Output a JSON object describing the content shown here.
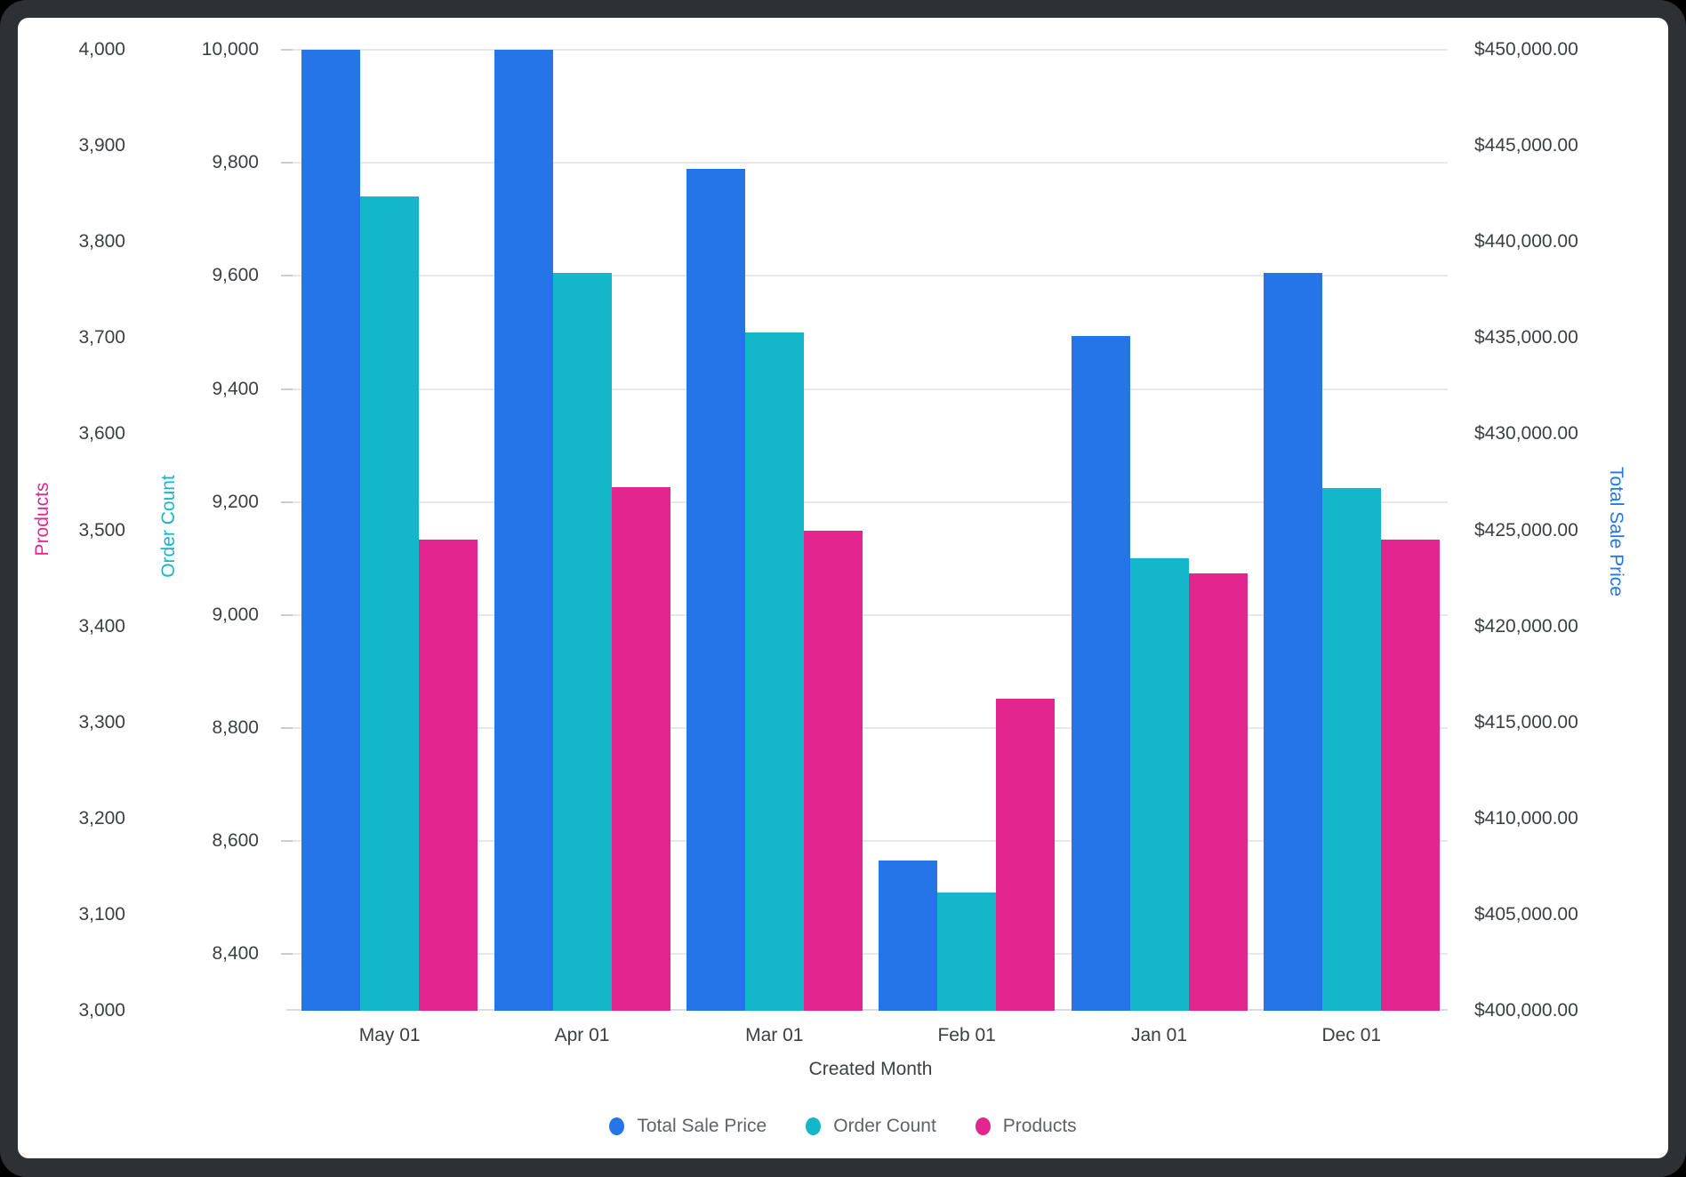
{
  "chart_data": {
    "type": "bar",
    "title": "",
    "xlabel": "Created Month",
    "categories": [
      "May 01",
      "Apr 01",
      "Mar 01",
      "Feb 01",
      "Jan 01",
      "Dec 01"
    ],
    "series": [
      {
        "name": "Total Sale Price",
        "axis": "price",
        "color": "#2375e8",
        "values": [
          450000,
          450000,
          443800,
          407800,
          435100,
          438400
        ]
      },
      {
        "name": "Order Count",
        "axis": "orders",
        "color": "#14b6ca",
        "values": [
          9740,
          9605,
          9500,
          8510,
          9100,
          9225
        ]
      },
      {
        "name": "Products",
        "axis": "products",
        "color": "#e2258f",
        "values": [
          3490,
          3545,
          3500,
          3325,
          3455,
          3490
        ]
      }
    ],
    "axes": {
      "products": {
        "label": "Products",
        "color": "#e2258f",
        "side": "left",
        "min": 3000,
        "max": 4000,
        "tick_values": [
          4000,
          3900,
          3800,
          3700,
          3600,
          3500,
          3400,
          3300,
          3200,
          3100,
          3000
        ],
        "tick_labels": [
          "4,000",
          "3,900",
          "3,800",
          "3,700",
          "3,600",
          "3,500",
          "3,400",
          "3,300",
          "3,200",
          "3,100",
          "3,000"
        ]
      },
      "orders": {
        "label": "Order Count",
        "color": "#14b6ca",
        "side": "left",
        "min": 8300,
        "max": 10000,
        "tick_values": [
          10000,
          9800,
          9600,
          9400,
          9200,
          9000,
          8800,
          8600,
          8400
        ],
        "tick_labels": [
          "10,000",
          "9,800",
          "9,600",
          "9,400",
          "9,200",
          "9,000",
          "8,800",
          "8,600",
          "8,400"
        ]
      },
      "price": {
        "label": "Total Sale Price",
        "color": "#2176e8",
        "side": "right",
        "min": 400000,
        "max": 450000,
        "tick_values": [
          450000,
          445000,
          440000,
          435000,
          430000,
          425000,
          420000,
          415000,
          410000,
          405000,
          400000
        ],
        "tick_labels": [
          "$450,000.00",
          "$445,000.00",
          "$440,000.00",
          "$435,000.00",
          "$430,000.00",
          "$425,000.00",
          "$420,000.00",
          "$415,000.00",
          "$410,000.00",
          "$405,000.00",
          "$400,000.00"
        ]
      }
    },
    "legend_position": "bottom",
    "grid": "horizontal lines at Order Count ticks"
  }
}
